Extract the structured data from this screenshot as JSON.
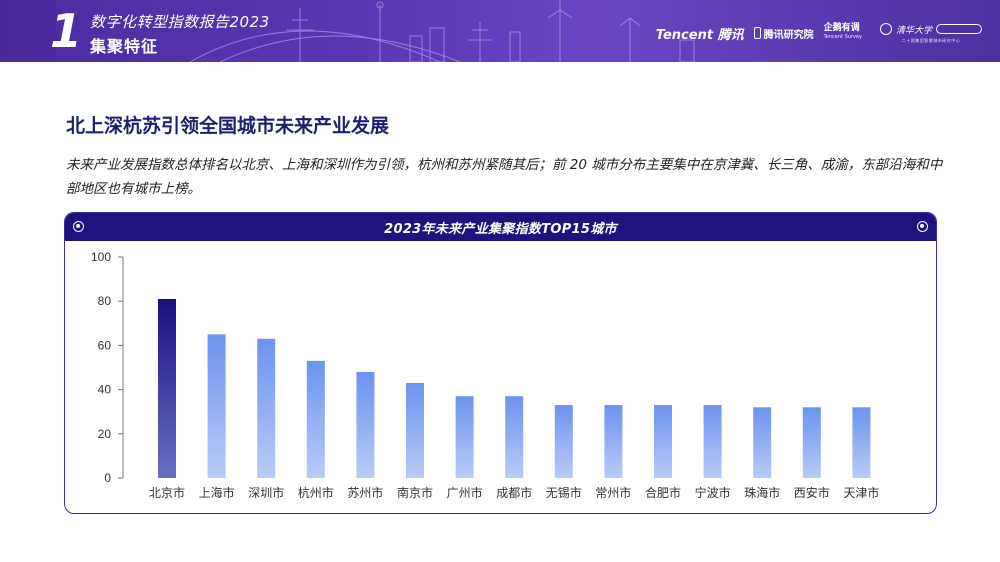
{
  "header": {
    "chapter_number": "1",
    "report_title": "数字化转型指数报告2023",
    "section_name": "集聚特征",
    "logos": {
      "tencent": "Tencent 腾讯",
      "research": "腾讯研究院",
      "penguin_main": "企鹅有调",
      "penguin_sub": "Tencent Survey",
      "tsinghua_name": "清华大学",
      "tsinghua_sub": "二十国集团智慧城市研究中心"
    },
    "colors": {
      "band_start": "#4b2a9e",
      "band_end": "#6a46c4"
    }
  },
  "headline": "北上深杭苏引领全国城市未来产业发展",
  "intro": "未来产业发展指数总体排名以北京、上海和深圳作为引领，杭州和苏州紧随其后；前 20 城市分布主要集中在京津冀、长三角、成渝，东部沿海和中部地区也有城市上榜。",
  "chart_data": {
    "type": "bar",
    "title": "2023年未来产业集聚指数TOP15城市",
    "categories": [
      "北京市",
      "上海市",
      "深圳市",
      "杭州市",
      "苏州市",
      "南京市",
      "广州市",
      "成都市",
      "无锡市",
      "常州市",
      "合肥市",
      "宁波市",
      "珠海市",
      "西安市",
      "天津市"
    ],
    "values": [
      81,
      65,
      63,
      53,
      48,
      43,
      37,
      37,
      33,
      33,
      33,
      33,
      32,
      32,
      32
    ],
    "ylim": [
      0,
      100
    ],
    "yticks": [
      0,
      20,
      40,
      60,
      80,
      100
    ],
    "xlabel": "",
    "ylabel": "",
    "grid": false,
    "legend": "none",
    "colors": {
      "top_bar_top": "#1a0f80",
      "top_bar_bottom": "#6a6fc4",
      "bar_top": "#6b93ee",
      "bar_bottom": "#b9cbf7",
      "card_border": "#3b2fa0",
      "card_header": "#1d127e"
    }
  }
}
